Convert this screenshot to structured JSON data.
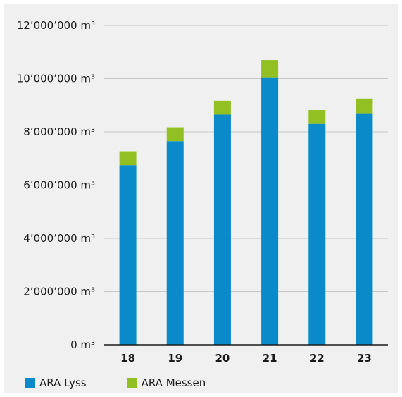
{
  "chart_data": {
    "type": "bar",
    "stacked": true,
    "title": "",
    "xlabel": "",
    "ylabel": "",
    "categories": [
      "18",
      "19",
      "20",
      "21",
      "22",
      "23"
    ],
    "ylim": [
      0,
      12000000
    ],
    "yticks": [
      0,
      2000000,
      4000000,
      6000000,
      8000000,
      10000000,
      12000000
    ],
    "ytick_labels": [
      "0 m³",
      "2’000’000 m³",
      "4’000’000 m³",
      "6’000’000 m³",
      "8’000’000 m³",
      "10’000’000 m³",
      "12’000’000 m³"
    ],
    "grid": true,
    "legend_position": "bottom-left",
    "series": [
      {
        "name": "ARA Lyss",
        "color": "#0a8ac9",
        "values": [
          6750000,
          7650000,
          8650000,
          10050000,
          8300000,
          8700000
        ]
      },
      {
        "name": "ARA Messen",
        "color": "#92c023",
        "values": [
          520000,
          520000,
          520000,
          650000,
          520000,
          550000
        ]
      }
    ]
  },
  "colors": {
    "background": "#f0f0f0",
    "gridline": "#c8c8c8",
    "axis": "#1a1a1a"
  }
}
